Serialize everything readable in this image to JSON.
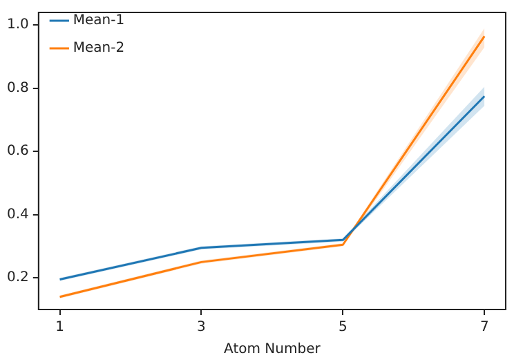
{
  "chart_data": {
    "type": "line",
    "xlabel": "Atom Number",
    "x": [
      1,
      3,
      5,
      7
    ],
    "xlim": [
      0.7,
      7.3
    ],
    "xticks": [
      1,
      3,
      5,
      7
    ],
    "ylim": [
      0.1,
      1.04
    ],
    "yticks": [
      0.2,
      0.4,
      0.6,
      0.8,
      {
        "value": 1,
        "label": "1.0"
      }
    ],
    "grid": false,
    "legend": "top left",
    "marker": "none",
    "line_style": "solid",
    "series": [
      {
        "name": "Mean-1",
        "color": "#1f77b4",
        "values": [
          0.195,
          0.295,
          0.32,
          0.775
        ],
        "lower": [
          0.19,
          0.29,
          0.315,
          0.745
        ],
        "upper": [
          0.2,
          0.3,
          0.325,
          0.805
        ]
      },
      {
        "name": "Mean-2",
        "color": "#ff7f0e",
        "values": [
          0.14,
          0.25,
          0.305,
          0.965
        ],
        "lower": [
          0.135,
          0.245,
          0.3,
          0.93
        ],
        "upper": [
          0.145,
          0.255,
          0.31,
          0.99
        ]
      }
    ]
  }
}
